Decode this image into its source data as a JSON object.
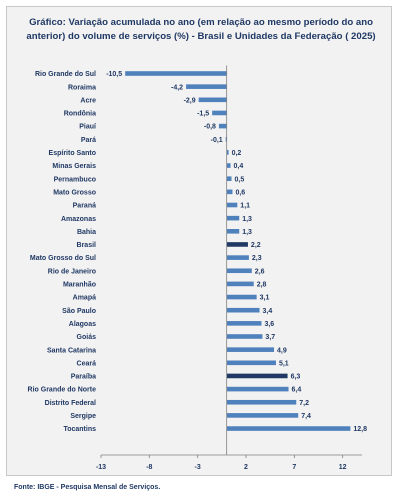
{
  "chart_data": {
    "type": "bar",
    "orientation": "horizontal",
    "title": "Gráfico: Variação acumulada no ano (em relação ao mesmo período do ano anterior) do volume de serviços (%)  - Brasil e Unidades da Federação ( 2025)",
    "categories": [
      "Rio Grande do Sul",
      "Roraima",
      "Acre",
      "Rondônia",
      "Piauí",
      "Pará",
      "Espírito Santo",
      "Minas Gerais",
      "Pernambuco",
      "Mato Grosso",
      "Paraná",
      "Amazonas",
      "Bahia",
      "Brasil",
      "Mato Grosso do Sul",
      "Rio de Janeiro",
      "Maranhão",
      "Amapá",
      "São Paulo",
      "Alagoas",
      "Goiás",
      "Santa Catarina",
      "Ceará",
      "Paraíba",
      "Rio Grande do Norte",
      "Distrito Federal",
      "Sergipe",
      "Tocantins"
    ],
    "values": [
      -10.5,
      -4.2,
      -2.9,
      -1.5,
      -0.8,
      -0.1,
      0.2,
      0.4,
      0.5,
      0.6,
      1.1,
      1.3,
      1.3,
      2.2,
      2.3,
      2.6,
      2.8,
      3.1,
      3.4,
      3.6,
      3.7,
      4.9,
      5.1,
      6.3,
      6.4,
      7.2,
      7.4,
      12.8
    ],
    "value_labels": [
      "-10,5",
      "-4,2",
      "-2,9",
      "-1,5",
      "-0,8",
      "-0,1",
      "0,2",
      "0,4",
      "0,5",
      "0,6",
      "1,1",
      "1,3",
      "1,3",
      "2,2",
      "2,3",
      "2,6",
      "2,8",
      "3,1",
      "3,4",
      "3,6",
      "3,7",
      "4,9",
      "5,1",
      "6,3",
      "6,4",
      "7,2",
      "7,4",
      "12,8"
    ],
    "highlight": [
      "Brasil",
      "Paraíba"
    ],
    "xlim": [
      -13,
      14
    ],
    "xticks": [
      -13,
      -8,
      -3,
      2,
      7,
      12
    ],
    "grid": false,
    "legend": "none",
    "colors": {
      "bar": "#4f81bd",
      "highlight": "#1f3864",
      "text": "#1f3864",
      "axis": "#7f7f7f"
    }
  },
  "source": "Fonte: IBGE - Pesquisa Mensal de Serviços."
}
